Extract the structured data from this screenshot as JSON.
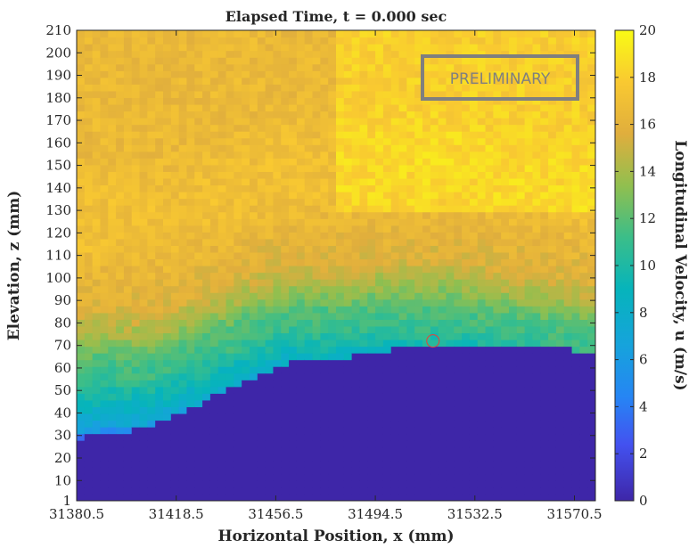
{
  "chart_data": {
    "type": "heatmap",
    "title": "Elapsed Time, t = 0.000 sec",
    "xlabel": "Horizontal Position, x (mm)",
    "ylabel": "Elevation, z (mm)",
    "colorbar_label": "Longitudinal Velocity, u (m/s)",
    "xlim": [
      31380.5,
      31578.5
    ],
    "ylim": [
      1,
      210
    ],
    "clim": [
      0,
      20
    ],
    "x_ticks": [
      "31380.5",
      "31418.5",
      "31456.5",
      "31494.5",
      "31532.5",
      "31570.5"
    ],
    "x_tick_values": [
      31380.5,
      31418.5,
      31456.5,
      31494.5,
      31532.5,
      31570.5
    ],
    "y_ticks": [
      "1",
      "10",
      "20",
      "30",
      "40",
      "50",
      "60",
      "70",
      "80",
      "90",
      "100",
      "110",
      "120",
      "130",
      "140",
      "150",
      "160",
      "170",
      "180",
      "190",
      "200",
      "210"
    ],
    "y_tick_values": [
      1,
      10,
      20,
      30,
      40,
      50,
      60,
      70,
      80,
      90,
      100,
      110,
      120,
      130,
      140,
      150,
      160,
      170,
      180,
      190,
      200,
      210
    ],
    "colorbar_ticks": [
      "0",
      "2",
      "4",
      "6",
      "8",
      "10",
      "12",
      "14",
      "16",
      "18",
      "20"
    ],
    "colorbar_tick_values": [
      0,
      2,
      4,
      6,
      8,
      10,
      12,
      14,
      16,
      18,
      20
    ],
    "bed_profile": {
      "x": [
        31380.5,
        31386,
        31392,
        31398,
        31404,
        31410,
        31416,
        31422,
        31428,
        31434,
        31440,
        31446,
        31452,
        31458,
        31464,
        31470,
        31476,
        31482,
        31488,
        31494,
        31500,
        31506,
        31512,
        31518,
        31524,
        31530,
        31540,
        31550,
        31560,
        31570,
        31578.5
      ],
      "z": [
        29,
        30,
        32,
        32,
        33,
        35,
        38,
        41,
        44,
        48,
        51,
        55,
        58,
        61,
        63,
        63,
        64,
        64,
        66,
        68,
        68,
        69,
        69,
        71,
        71,
        71,
        70,
        70,
        69,
        68,
        68
      ]
    },
    "fluid_velocity": {
      "z": [
        35,
        40,
        50,
        60,
        70,
        80,
        90,
        100,
        110,
        120,
        140,
        160,
        180,
        200,
        210
      ],
      "u_mean": [
        4,
        7,
        9,
        11,
        12,
        14,
        15.5,
        16,
        16.5,
        17,
        17,
        16.5,
        16.5,
        16.5,
        16.5
      ]
    },
    "probe_marker": {
      "x": 31516.5,
      "z": 72
    },
    "stamp": "PRELIMINARY",
    "grid": false
  }
}
